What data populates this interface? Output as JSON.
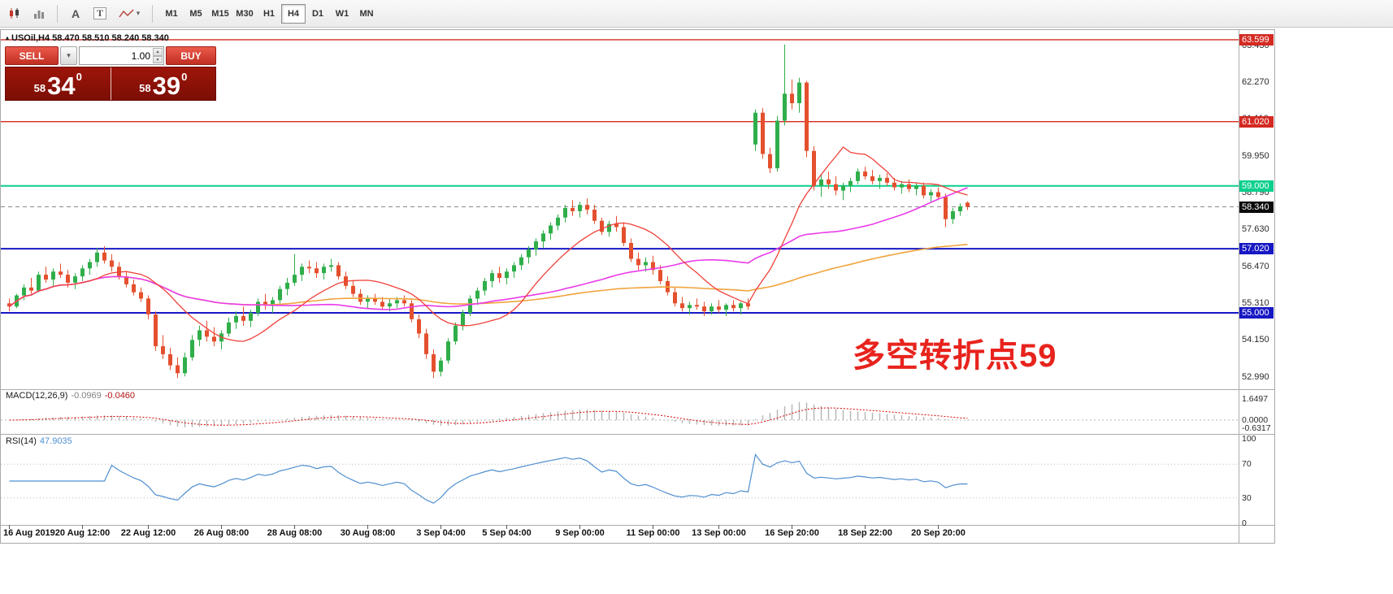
{
  "toolbar": {
    "cursor_glyph": "A",
    "text_glyph": "T",
    "timeframes": [
      "M1",
      "M5",
      "M15",
      "M30",
      "H1",
      "H4",
      "D1",
      "W1",
      "MN"
    ],
    "active_timeframe": "H4"
  },
  "symbol_header": {
    "marker": "▴",
    "text": "USOil,H4  58.470 58.510 58.240 58.340"
  },
  "trade_panel": {
    "sell_label": "SELL",
    "buy_label": "BUY",
    "volume": "1.00",
    "sell_price": {
      "major": "58",
      "pips": "34",
      "pipette": "0"
    },
    "buy_price": {
      "major": "58",
      "pips": "39",
      "pipette": "0"
    }
  },
  "annotation": {
    "text": "多空转折点59",
    "color": "#e8231d"
  },
  "price_axis": {
    "ticks": [
      "63.430",
      "62.270",
      "61.110",
      "59.950",
      "58.790",
      "57.630",
      "56.470",
      "55.310",
      "54.150",
      "52.990"
    ]
  },
  "indicators": {
    "macd": {
      "name": "MACD(12,26,9)",
      "v1": "-0.0969",
      "v2": "-0.0460",
      "axis": [
        {
          "v": 1.6497,
          "t": "1.6497"
        },
        {
          "v": 0,
          "t": "0.0000"
        },
        {
          "v": -0.6317,
          "t": "-0.6317"
        }
      ]
    },
    "rsi": {
      "name": "RSI(14)",
      "value": "47.9035",
      "axis": [
        {
          "v": 100,
          "t": "100"
        },
        {
          "v": 70,
          "t": "70"
        },
        {
          "v": 30,
          "t": "30"
        },
        {
          "v": 0,
          "t": "0"
        }
      ]
    }
  },
  "time_axis": {
    "labels": [
      {
        "i": 0,
        "t": "16 Aug 2019"
      },
      {
        "i": 10,
        "t": "20 Aug 12:00"
      },
      {
        "i": 19,
        "t": "22 Aug 12:00"
      },
      {
        "i": 29,
        "t": "26 Aug 08:00"
      },
      {
        "i": 39,
        "t": "28 Aug 08:00"
      },
      {
        "i": 49,
        "t": "30 Aug 08:00"
      },
      {
        "i": 59,
        "t": "3 Sep 04:00"
      },
      {
        "i": 68,
        "t": "5 Sep 04:00"
      },
      {
        "i": 78,
        "t": "9 Sep 00:00"
      },
      {
        "i": 88,
        "t": "11 Sep 00:00"
      },
      {
        "i": 97,
        "t": "13 Sep 00:00"
      },
      {
        "i": 107,
        "t": "16 Sep 20:00"
      },
      {
        "i": 117,
        "t": "18 Sep 22:00"
      },
      {
        "i": 127,
        "t": "20 Sep 20:00"
      }
    ]
  },
  "colors": {
    "bull": "#2fae4a",
    "bear": "#e4502e",
    "ma_red": "#f0403a",
    "ma_magenta": "#e93ce9",
    "ma_orange": "#f2a33c",
    "macd_hist": "#b4b4b4",
    "macd_signal": "#d90000",
    "rsi_line": "#4f8fd0",
    "grid": "#b9b9b9"
  },
  "chart_data": {
    "type": "candlestick",
    "symbol": "USOil",
    "timeframe": "H4",
    "ma_periods": {
      "red": 13,
      "magenta": 34,
      "orange": 89
    },
    "levels": [
      {
        "price": 63.599,
        "label": "63.599",
        "line_color": "#d42a22",
        "label_bg": "#d42a22",
        "width": 1.4,
        "dashed": false
      },
      {
        "price": 61.02,
        "label": "61.020",
        "line_color": "#d42a22",
        "label_bg": "#d42a22",
        "width": 1.4,
        "dashed": false
      },
      {
        "price": 59.0,
        "label": "59.000",
        "line_color": "#0bcf8e",
        "label_bg": "#0bcf8e",
        "width": 2,
        "dashed": false
      },
      {
        "price": 58.34,
        "label": "58.340",
        "line_color": "#8a8a8a",
        "label_bg": "#0a0a0a",
        "width": 1,
        "dashed": true
      },
      {
        "price": 57.02,
        "label": "57.020",
        "line_color": "#1718c4",
        "label_bg": "#1718c4",
        "width": 2,
        "dashed": false
      },
      {
        "price": 55.0,
        "label": "55.000",
        "line_color": "#1718c4",
        "label_bg": "#1718c4",
        "width": 2,
        "dashed": false
      }
    ],
    "ohlc": [
      [
        55.3,
        55.45,
        55.05,
        55.2
      ],
      [
        55.2,
        55.6,
        55.15,
        55.55
      ],
      [
        55.55,
        55.9,
        55.4,
        55.8
      ],
      [
        55.8,
        56.1,
        55.6,
        55.7
      ],
      [
        55.7,
        56.3,
        55.65,
        56.2
      ],
      [
        56.2,
        56.45,
        55.95,
        56.05
      ],
      [
        56.05,
        56.4,
        55.85,
        56.3
      ],
      [
        56.3,
        56.55,
        56.1,
        56.2
      ],
      [
        56.2,
        56.35,
        55.8,
        55.95
      ],
      [
        55.95,
        56.25,
        55.75,
        56.15
      ],
      [
        56.15,
        56.5,
        56.0,
        56.4
      ],
      [
        56.4,
        56.7,
        56.2,
        56.6
      ],
      [
        56.6,
        57.05,
        56.45,
        56.9
      ],
      [
        56.9,
        57.1,
        56.55,
        56.65
      ],
      [
        56.65,
        56.85,
        56.3,
        56.45
      ],
      [
        56.45,
        56.6,
        56.05,
        56.15
      ],
      [
        56.15,
        56.3,
        55.8,
        55.9
      ],
      [
        55.9,
        56.05,
        55.55,
        55.65
      ],
      [
        55.65,
        55.8,
        55.35,
        55.45
      ],
      [
        55.45,
        55.55,
        54.8,
        54.95
      ],
      [
        54.95,
        55.05,
        53.8,
        53.95
      ],
      [
        53.95,
        54.3,
        53.55,
        53.7
      ],
      [
        53.7,
        53.9,
        53.2,
        53.35
      ],
      [
        53.35,
        53.6,
        52.95,
        53.1
      ],
      [
        53.1,
        53.75,
        53.0,
        53.6
      ],
      [
        53.6,
        54.3,
        53.5,
        54.15
      ],
      [
        54.15,
        54.6,
        53.95,
        54.45
      ],
      [
        54.45,
        54.75,
        54.1,
        54.25
      ],
      [
        54.25,
        54.55,
        53.95,
        54.1
      ],
      [
        54.1,
        54.45,
        53.85,
        54.35
      ],
      [
        54.35,
        54.85,
        54.25,
        54.7
      ],
      [
        54.7,
        55.05,
        54.5,
        54.9
      ],
      [
        54.9,
        55.2,
        54.6,
        54.75
      ],
      [
        54.75,
        55.1,
        54.55,
        55.0
      ],
      [
        55.0,
        55.45,
        54.9,
        55.35
      ],
      [
        55.35,
        55.6,
        55.1,
        55.25
      ],
      [
        55.25,
        55.5,
        55.0,
        55.4
      ],
      [
        55.4,
        55.85,
        55.3,
        55.75
      ],
      [
        55.75,
        56.1,
        55.55,
        55.95
      ],
      [
        55.95,
        56.85,
        55.85,
        56.2
      ],
      [
        56.2,
        56.55,
        56.0,
        56.45
      ],
      [
        56.45,
        56.65,
        56.25,
        56.4
      ],
      [
        56.4,
        56.6,
        56.1,
        56.25
      ],
      [
        56.25,
        56.55,
        56.05,
        56.45
      ],
      [
        56.45,
        56.7,
        56.3,
        56.5
      ],
      [
        56.5,
        56.6,
        56.05,
        56.15
      ],
      [
        56.15,
        56.3,
        55.75,
        55.85
      ],
      [
        55.85,
        56.0,
        55.5,
        55.6
      ],
      [
        55.6,
        55.75,
        55.25,
        55.35
      ],
      [
        55.35,
        55.55,
        55.15,
        55.45
      ],
      [
        55.45,
        55.6,
        55.25,
        55.35
      ],
      [
        55.35,
        55.5,
        55.1,
        55.2
      ],
      [
        55.2,
        55.45,
        55.05,
        55.3
      ],
      [
        55.3,
        55.5,
        55.15,
        55.4
      ],
      [
        55.4,
        55.55,
        55.2,
        55.3
      ],
      [
        55.3,
        55.4,
        54.7,
        54.8
      ],
      [
        54.8,
        54.95,
        54.2,
        54.35
      ],
      [
        54.35,
        54.5,
        53.55,
        53.7
      ],
      [
        53.7,
        53.85,
        52.95,
        53.15
      ],
      [
        53.15,
        53.6,
        53.0,
        53.5
      ],
      [
        53.5,
        54.2,
        53.4,
        54.1
      ],
      [
        54.1,
        54.7,
        54.0,
        54.6
      ],
      [
        54.6,
        55.1,
        54.45,
        55.0
      ],
      [
        55.0,
        55.55,
        54.9,
        55.45
      ],
      [
        55.45,
        55.8,
        55.25,
        55.7
      ],
      [
        55.7,
        56.1,
        55.55,
        56.0
      ],
      [
        56.0,
        56.35,
        55.8,
        56.25
      ],
      [
        56.25,
        56.45,
        55.95,
        56.1
      ],
      [
        56.1,
        56.4,
        55.9,
        56.3
      ],
      [
        56.3,
        56.6,
        56.1,
        56.5
      ],
      [
        56.5,
        56.85,
        56.35,
        56.75
      ],
      [
        56.75,
        57.1,
        56.55,
        57.0
      ],
      [
        57.0,
        57.35,
        56.8,
        57.25
      ],
      [
        57.25,
        57.6,
        57.05,
        57.5
      ],
      [
        57.5,
        57.85,
        57.3,
        57.75
      ],
      [
        57.75,
        58.1,
        57.6,
        58.0
      ],
      [
        58.0,
        58.4,
        57.85,
        58.3
      ],
      [
        58.3,
        58.55,
        58.05,
        58.2
      ],
      [
        58.2,
        58.5,
        58.0,
        58.4
      ],
      [
        58.4,
        58.6,
        58.1,
        58.25
      ],
      [
        58.25,
        58.4,
        57.8,
        57.9
      ],
      [
        57.9,
        58.0,
        57.45,
        57.55
      ],
      [
        57.55,
        57.9,
        57.4,
        57.8
      ],
      [
        57.8,
        58.05,
        57.55,
        57.7
      ],
      [
        57.7,
        57.85,
        57.1,
        57.2
      ],
      [
        57.2,
        57.35,
        56.6,
        56.7
      ],
      [
        56.7,
        56.9,
        56.35,
        56.5
      ],
      [
        56.5,
        56.75,
        56.3,
        56.6
      ],
      [
        56.6,
        56.8,
        56.2,
        56.35
      ],
      [
        56.35,
        56.5,
        55.9,
        56.0
      ],
      [
        56.0,
        56.15,
        55.55,
        55.65
      ],
      [
        55.65,
        55.8,
        55.2,
        55.3
      ],
      [
        55.3,
        55.5,
        55.05,
        55.15
      ],
      [
        55.15,
        55.35,
        54.95,
        55.25
      ],
      [
        55.25,
        55.45,
        55.1,
        55.2
      ],
      [
        55.2,
        55.35,
        54.9,
        55.05
      ],
      [
        55.05,
        55.3,
        54.95,
        55.2
      ],
      [
        55.2,
        55.4,
        55.0,
        55.1
      ],
      [
        55.1,
        55.3,
        54.9,
        55.25
      ],
      [
        55.25,
        55.4,
        55.05,
        55.15
      ],
      [
        55.15,
        55.35,
        54.95,
        55.3
      ],
      [
        55.3,
        55.45,
        55.1,
        55.2
      ],
      [
        60.3,
        61.4,
        60.1,
        61.3
      ],
      [
        61.3,
        61.45,
        59.85,
        60.0
      ],
      [
        60.0,
        60.2,
        59.4,
        59.55
      ],
      [
        59.55,
        61.2,
        59.45,
        61.05
      ],
      [
        61.05,
        63.45,
        60.9,
        61.9
      ],
      [
        61.9,
        62.35,
        61.4,
        61.6
      ],
      [
        61.6,
        62.4,
        61.3,
        62.25
      ],
      [
        62.25,
        62.3,
        59.9,
        60.1
      ],
      [
        60.1,
        60.25,
        58.85,
        59.0
      ],
      [
        59.0,
        59.35,
        58.65,
        59.2
      ],
      [
        59.2,
        59.45,
        58.9,
        59.05
      ],
      [
        59.05,
        59.3,
        58.7,
        58.85
      ],
      [
        58.85,
        59.1,
        58.55,
        59.0
      ],
      [
        59.0,
        59.25,
        58.8,
        59.15
      ],
      [
        59.15,
        59.55,
        59.05,
        59.45
      ],
      [
        59.45,
        59.6,
        59.2,
        59.3
      ],
      [
        59.3,
        59.5,
        59.05,
        59.15
      ],
      [
        59.15,
        59.35,
        58.9,
        59.25
      ],
      [
        59.25,
        59.4,
        59.0,
        59.1
      ],
      [
        59.1,
        59.25,
        58.85,
        58.95
      ],
      [
        58.95,
        59.15,
        58.75,
        59.05
      ],
      [
        59.05,
        59.2,
        58.8,
        58.9
      ],
      [
        58.9,
        59.1,
        58.7,
        59.0
      ],
      [
        59.0,
        59.1,
        58.6,
        58.7
      ],
      [
        58.7,
        58.9,
        58.5,
        58.8
      ],
      [
        58.8,
        58.95,
        58.55,
        58.65
      ],
      [
        58.65,
        58.75,
        57.7,
        57.95
      ],
      [
        57.95,
        58.3,
        57.8,
        58.2
      ],
      [
        58.2,
        58.45,
        58.05,
        58.35
      ],
      [
        58.47,
        58.51,
        58.24,
        58.34
      ]
    ]
  }
}
